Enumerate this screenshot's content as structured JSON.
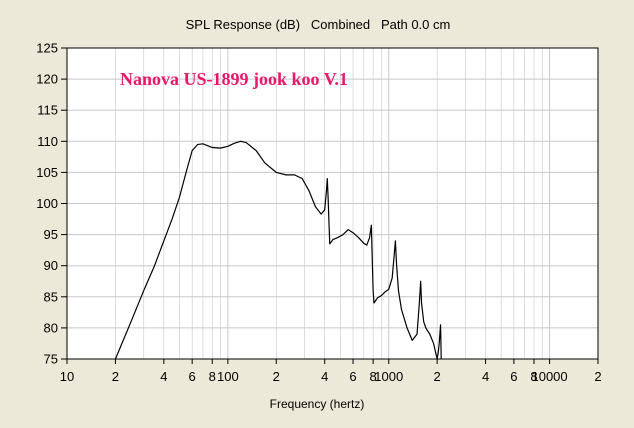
{
  "chart_data": {
    "type": "line",
    "title": "SPL Response (dB)   Combined   Path 0.0 cm",
    "annotation": "Nanova US-1899 jook koo V.1",
    "xlabel": "Frequency (hertz)",
    "ylabel": "",
    "x_scale": "log",
    "xlim": [
      10,
      20000
    ],
    "ylim": [
      75,
      125
    ],
    "grid": true,
    "colors": {
      "background": "#ece9d8",
      "plot": "#ffffff",
      "line": "#000000",
      "annotation": "#e8186c",
      "grid": "#c8c8c8"
    },
    "y_ticks": [
      {
        "value": 75,
        "label": "75"
      },
      {
        "value": 80,
        "label": "80"
      },
      {
        "value": 85,
        "label": "85"
      },
      {
        "value": 90,
        "label": "90"
      },
      {
        "value": 95,
        "label": "95"
      },
      {
        "value": 100,
        "label": "100"
      },
      {
        "value": 105,
        "label": "105"
      },
      {
        "value": 110,
        "label": "110"
      },
      {
        "value": 115,
        "label": "115"
      },
      {
        "value": 120,
        "label": "120"
      },
      {
        "value": 125,
        "label": "125"
      }
    ],
    "x_ticks": [
      {
        "value": 10,
        "label": "10"
      },
      {
        "value": 20,
        "label": "2"
      },
      {
        "value": 40,
        "label": "4"
      },
      {
        "value": 60,
        "label": "6"
      },
      {
        "value": 80,
        "label": "8"
      },
      {
        "value": 100,
        "label": "100"
      },
      {
        "value": 200,
        "label": "2"
      },
      {
        "value": 400,
        "label": "4"
      },
      {
        "value": 600,
        "label": "6"
      },
      {
        "value": 800,
        "label": "8"
      },
      {
        "value": 1000,
        "label": "1000"
      },
      {
        "value": 2000,
        "label": "2"
      },
      {
        "value": 4000,
        "label": "4"
      },
      {
        "value": 6000,
        "label": "6"
      },
      {
        "value": 8000,
        "label": "8"
      },
      {
        "value": 10000,
        "label": "10000"
      },
      {
        "value": 20000,
        "label": "2"
      }
    ],
    "series": [
      {
        "points": [
          [
            20,
            75
          ],
          [
            25,
            81
          ],
          [
            30,
            86
          ],
          [
            35,
            90
          ],
          [
            40,
            94
          ],
          [
            45,
            97.5
          ],
          [
            50,
            101
          ],
          [
            55,
            105
          ],
          [
            60,
            108.5
          ],
          [
            65,
            109.5
          ],
          [
            70,
            109.6
          ],
          [
            80,
            109
          ],
          [
            90,
            108.9
          ],
          [
            100,
            109.2
          ],
          [
            110,
            109.7
          ],
          [
            120,
            110
          ],
          [
            130,
            109.8
          ],
          [
            150,
            108.5
          ],
          [
            170,
            106.5
          ],
          [
            200,
            105
          ],
          [
            230,
            104.6
          ],
          [
            260,
            104.6
          ],
          [
            290,
            104
          ],
          [
            320,
            102
          ],
          [
            350,
            99.5
          ],
          [
            380,
            98.3
          ],
          [
            400,
            99
          ],
          [
            410,
            102
          ],
          [
            415,
            104
          ],
          [
            420,
            101
          ],
          [
            425,
            97
          ],
          [
            430,
            93.5
          ],
          [
            450,
            94.2
          ],
          [
            480,
            94.5
          ],
          [
            520,
            95
          ],
          [
            560,
            95.8
          ],
          [
            600,
            95.3
          ],
          [
            650,
            94.5
          ],
          [
            700,
            93.6
          ],
          [
            730,
            93.3
          ],
          [
            760,
            94.5
          ],
          [
            780,
            96.5
          ],
          [
            790,
            91
          ],
          [
            800,
            86
          ],
          [
            810,
            84
          ],
          [
            850,
            84.8
          ],
          [
            900,
            85.2
          ],
          [
            950,
            85.8
          ],
          [
            1000,
            86.2
          ],
          [
            1050,
            88
          ],
          [
            1080,
            91.5
          ],
          [
            1100,
            94
          ],
          [
            1120,
            90
          ],
          [
            1150,
            86
          ],
          [
            1200,
            83
          ],
          [
            1300,
            80
          ],
          [
            1400,
            78
          ],
          [
            1500,
            79
          ],
          [
            1550,
            84
          ],
          [
            1580,
            87.5
          ],
          [
            1600,
            84
          ],
          [
            1650,
            81
          ],
          [
            1700,
            80
          ],
          [
            1800,
            79
          ],
          [
            1900,
            77.5
          ],
          [
            2000,
            75
          ],
          [
            2030,
            76
          ],
          [
            2060,
            77.5
          ],
          [
            2080,
            79
          ],
          [
            2100,
            80.5
          ],
          [
            2110,
            78
          ],
          [
            2120,
            75
          ]
        ]
      }
    ]
  }
}
